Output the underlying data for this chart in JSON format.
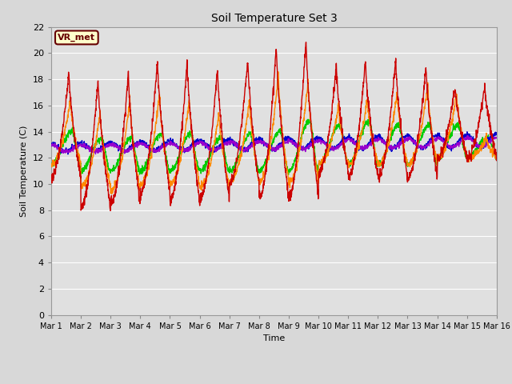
{
  "title": "Soil Temperature Set 3",
  "ylabel": "Soil Temperature (C)",
  "xlabel": "Time",
  "ylim": [
    0,
    22
  ],
  "xlim": [
    0,
    15
  ],
  "xtick_labels": [
    "Mar 1",
    "Mar 2",
    "Mar 3",
    "Mar 4",
    "Mar 5",
    "Mar 6",
    "Mar 7",
    "Mar 8",
    "Mar 9",
    "Mar 10",
    "Mar 11",
    "Mar 12",
    "Mar 13",
    "Mar 14",
    "Mar 15",
    "Mar 16"
  ],
  "ytick_values": [
    0,
    2,
    4,
    6,
    8,
    10,
    12,
    14,
    16,
    18,
    20,
    22
  ],
  "bg_color": "#d8d8d8",
  "plot_bg_color": "#e0e0e0",
  "grid_color": "#ffffff",
  "series": {
    "Tsoil -2cm": {
      "color": "#cc0000",
      "lw": 1.0
    },
    "Tsoil -4cm": {
      "color": "#ff8800",
      "lw": 1.0
    },
    "Tsoil -8cm": {
      "color": "#00cc00",
      "lw": 1.0
    },
    "Tsoil -16cm": {
      "color": "#0000cc",
      "lw": 1.0
    },
    "Tsoil -32cm": {
      "color": "#9900cc",
      "lw": 1.0
    }
  },
  "vr_met_label": "VR_met",
  "vr_met_bg": "#ffffcc",
  "vr_met_edge": "#660000",
  "figsize": [
    6.4,
    4.8
  ],
  "dpi": 100
}
